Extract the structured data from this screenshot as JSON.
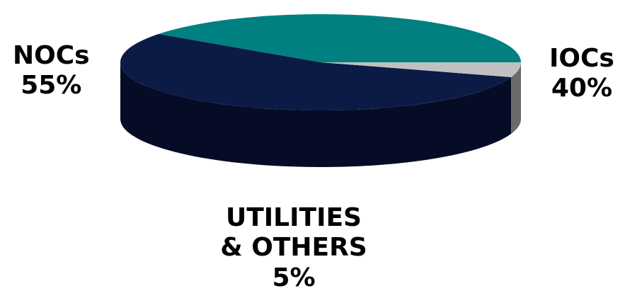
{
  "chart_data": {
    "type": "pie",
    "style": "3d",
    "title": "",
    "slices": [
      {
        "label_lines": [
          "NOCs",
          "55%"
        ],
        "value": 55,
        "color": "#0c1a46",
        "side_color": "#060c26"
      },
      {
        "label_lines": [
          "IOCs",
          "40%"
        ],
        "value": 40,
        "color": "#008080",
        "side_color": "#004242"
      },
      {
        "label_lines": [
          "UTILITIES",
          "& OTHERS",
          "5%"
        ],
        "value": 5,
        "color": "#c0c0c0",
        "side_color": "#6a6a6a"
      }
    ],
    "legend": "none"
  }
}
